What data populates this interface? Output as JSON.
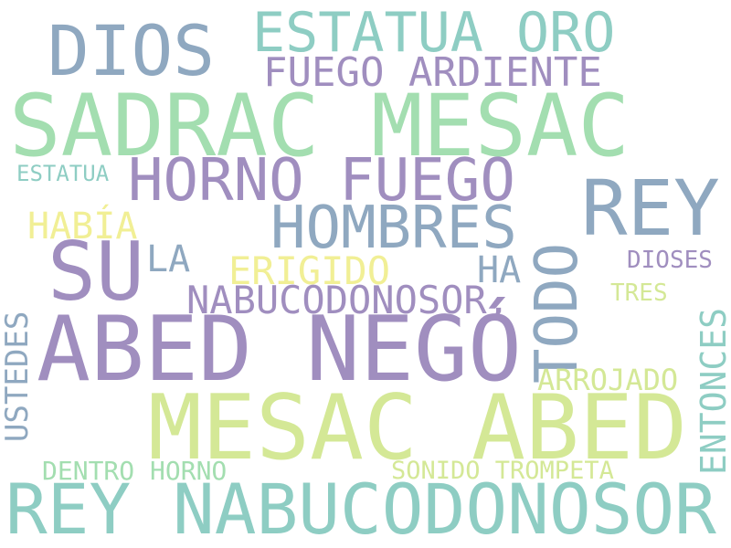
{
  "words": {
    "dios": "DIOS",
    "estatua_oro": "ESTATUA ORO",
    "fuego_ardiente": "FUEGO ARDIENTE",
    "sadrac_mesac": "SADRAC MESAC",
    "estatua": "ESTATUA",
    "horno_fuego": "HORNO FUEGO",
    "rey": "REY",
    "habia": "HABÍA",
    "hombres": "HOMBRES",
    "su": "SU",
    "la": "LA",
    "erigido": "ERIGIDO",
    "ha": "HA",
    "todo": "TODO",
    "dioses": "DIOSES",
    "nabucodonosor_comma": "NABUCODONOSOR,",
    "tres": "TRES",
    "ustedes": "USTEDES",
    "abed_nego": "ABED NEGÓ",
    "entonces": "ENTONCES",
    "arrojado": "ARROJADO",
    "mesac_abed": "MESAC ABED",
    "dentro_horno": "DENTRO HORNO",
    "sonido_trompeta": "SONIDO TROMPETA",
    "rey_nabucodonosor": "REY NABUCODONOSOR"
  },
  "colors": {
    "blue_grey": "#8fa8c0",
    "teal": "#8ecdc3",
    "mint": "#a3deb0",
    "lilac": "#a08ebf",
    "lime": "#d4e896",
    "yellow": "#f1ef95",
    "background": "#ffffff"
  }
}
